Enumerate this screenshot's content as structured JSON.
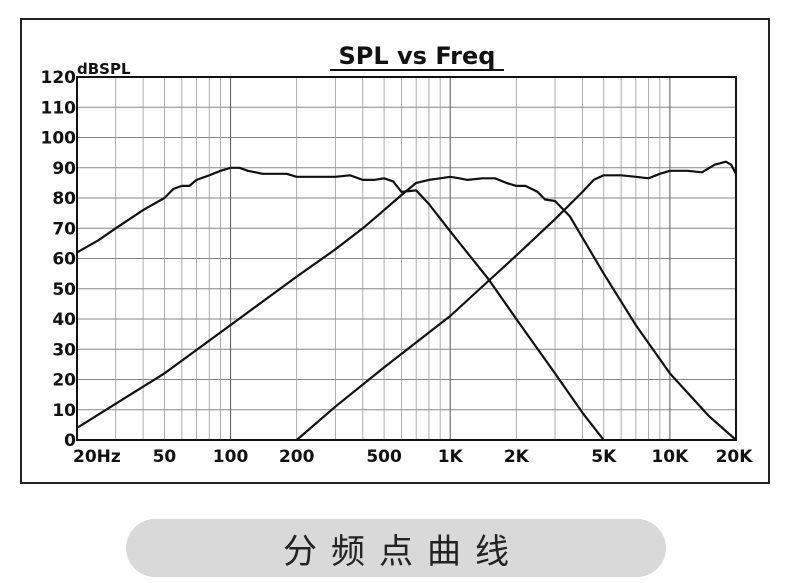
{
  "chart_data": {
    "type": "line",
    "title": "SPL vs Freq",
    "ylabel": "dBSPL",
    "xlabel": "",
    "x_scale": "log",
    "xlim": [
      20,
      20000
    ],
    "ylim": [
      0,
      120
    ],
    "grid": true,
    "y_ticks": [
      {
        "value": 0,
        "label": "0"
      },
      {
        "value": 10,
        "label": "10"
      },
      {
        "value": 20,
        "label": "20"
      },
      {
        "value": 30,
        "label": "30"
      },
      {
        "value": 40,
        "label": "40"
      },
      {
        "value": 50,
        "label": "50"
      },
      {
        "value": 60,
        "label": "60"
      },
      {
        "value": 70,
        "label": "70"
      },
      {
        "value": 80,
        "label": "80"
      },
      {
        "value": 90,
        "label": "90"
      },
      {
        "value": 100,
        "label": "100"
      },
      {
        "value": 110,
        "label": "110"
      },
      {
        "value": 120,
        "label": "120"
      }
    ],
    "x_ticks": [
      {
        "value": 20,
        "label": "20Hz"
      },
      {
        "value": 50,
        "label": "50"
      },
      {
        "value": 100,
        "label": "100"
      },
      {
        "value": 200,
        "label": "200"
      },
      {
        "value": 500,
        "label": "500"
      },
      {
        "value": 1000,
        "label": "1K"
      },
      {
        "value": 2000,
        "label": "2K"
      },
      {
        "value": 5000,
        "label": "5K"
      },
      {
        "value": 10000,
        "label": "10K"
      },
      {
        "value": 20000,
        "label": "20K"
      }
    ],
    "series": [
      {
        "points": [
          [
            20,
            62
          ],
          [
            25,
            66
          ],
          [
            30,
            70
          ],
          [
            40,
            76
          ],
          [
            50,
            80
          ],
          [
            55,
            83
          ],
          [
            60,
            84
          ],
          [
            65,
            84
          ],
          [
            70,
            86
          ],
          [
            80,
            87.5
          ],
          [
            90,
            89
          ],
          [
            100,
            90
          ],
          [
            110,
            90
          ],
          [
            120,
            89
          ],
          [
            140,
            88
          ],
          [
            160,
            88
          ],
          [
            180,
            88
          ],
          [
            200,
            87
          ],
          [
            250,
            87
          ],
          [
            300,
            87
          ],
          [
            350,
            87.5
          ],
          [
            400,
            86
          ],
          [
            450,
            86
          ],
          [
            500,
            86.5
          ],
          [
            550,
            85.5
          ],
          [
            600,
            82
          ],
          [
            700,
            82.5
          ],
          [
            800,
            78
          ],
          [
            1000,
            69
          ],
          [
            1500,
            53
          ],
          [
            2000,
            40
          ],
          [
            3000,
            22
          ],
          [
            4000,
            9
          ],
          [
            5000,
            0
          ]
        ]
      },
      {
        "points": [
          [
            20,
            4
          ],
          [
            50,
            22
          ],
          [
            100,
            38
          ],
          [
            200,
            54
          ],
          [
            300,
            63
          ],
          [
            400,
            70
          ],
          [
            500,
            76
          ],
          [
            600,
            81
          ],
          [
            700,
            85
          ],
          [
            800,
            86
          ],
          [
            900,
            86.5
          ],
          [
            1000,
            87
          ],
          [
            1100,
            86.5
          ],
          [
            1200,
            86
          ],
          [
            1400,
            86.5
          ],
          [
            1600,
            86.5
          ],
          [
            1800,
            85
          ],
          [
            2000,
            84
          ],
          [
            2200,
            84
          ],
          [
            2500,
            82
          ],
          [
            2700,
            79.5
          ],
          [
            3000,
            79
          ],
          [
            3500,
            74
          ],
          [
            5000,
            55
          ],
          [
            7000,
            38
          ],
          [
            10000,
            22
          ],
          [
            15000,
            8
          ],
          [
            20000,
            0
          ]
        ]
      },
      {
        "points": [
          [
            200,
            0
          ],
          [
            300,
            11
          ],
          [
            500,
            24
          ],
          [
            1000,
            41
          ],
          [
            2000,
            61
          ],
          [
            3000,
            73
          ],
          [
            4000,
            82
          ],
          [
            4500,
            86
          ],
          [
            5000,
            87.5
          ],
          [
            6000,
            87.5
          ],
          [
            7000,
            87
          ],
          [
            8000,
            86.5
          ],
          [
            9000,
            88
          ],
          [
            10000,
            89
          ],
          [
            12000,
            89
          ],
          [
            14000,
            88.5
          ],
          [
            16000,
            91
          ],
          [
            18000,
            92
          ],
          [
            19000,
            91
          ],
          [
            20000,
            88
          ]
        ]
      }
    ]
  },
  "caption": "分频点曲线"
}
